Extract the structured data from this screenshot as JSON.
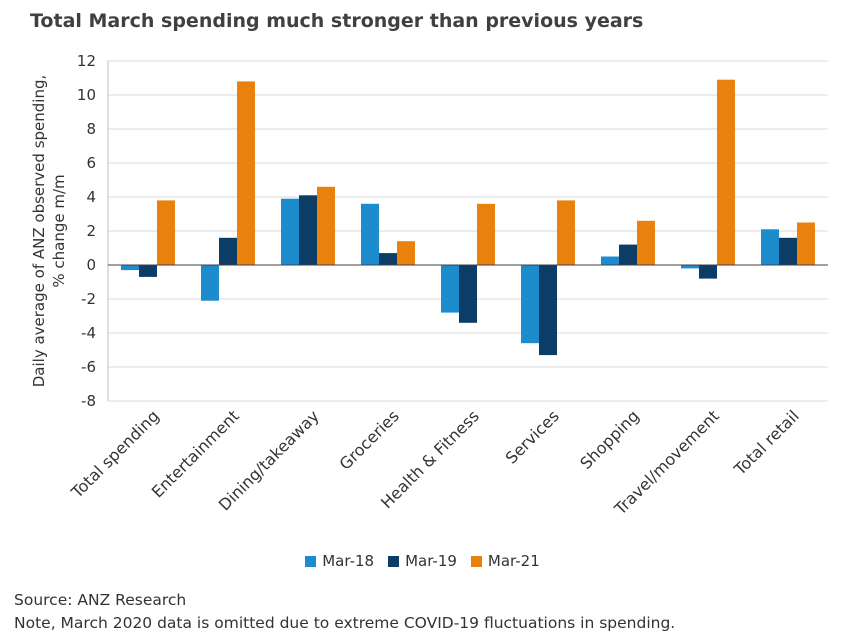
{
  "chart_data": {
    "type": "bar",
    "title": "Total March spending much stronger than previous years",
    "ylabel_lines": [
      "Daily average of ANZ observed spending,",
      "% change m/m"
    ],
    "xlabel": "",
    "ylim": [
      -8,
      12
    ],
    "yticks": [
      12,
      10,
      8,
      6,
      4,
      2,
      0,
      -2,
      -4,
      -6,
      -8
    ],
    "grid": true,
    "legend_position": "bottom",
    "categories": [
      "Total spending",
      "Entertainment",
      "Dining/takeaway",
      "Groceries",
      "Health & Fitness",
      "Services",
      "Shopping",
      "Travel/movement",
      "Total retail"
    ],
    "series": [
      {
        "name": "Mar-18",
        "color": "#1c8ccf",
        "values": [
          -0.3,
          -2.1,
          3.9,
          3.6,
          -2.8,
          -4.6,
          0.5,
          -0.2,
          2.1
        ]
      },
      {
        "name": "Mar-19",
        "color": "#0b3d66",
        "values": [
          -0.7,
          1.6,
          4.1,
          0.7,
          -3.4,
          -5.3,
          1.2,
          -0.8,
          1.6
        ]
      },
      {
        "name": "Mar-21",
        "color": "#e8820c",
        "values": [
          3.8,
          10.8,
          4.6,
          1.4,
          3.6,
          3.8,
          2.6,
          10.9,
          2.5
        ]
      }
    ]
  },
  "footer": {
    "source": "Source: ANZ Research",
    "note": "Note, March 2020 data is omitted due to extreme COVID-19 fluctuations in spending."
  }
}
